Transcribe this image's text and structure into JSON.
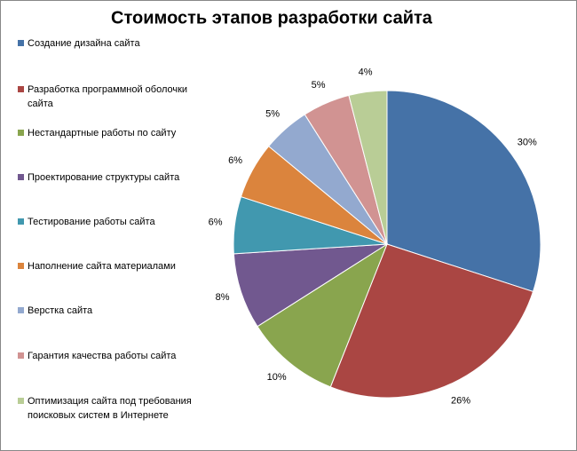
{
  "chart_data": {
    "type": "pie",
    "title": "Стоимость этапов разработки сайта",
    "categories": [
      "Создание дизайна сайта",
      "Разработка программной оболочки сайта",
      "Нестандартные работы по сайту",
      "Проектирование  структуры сайта",
      "Тестирование  работы сайта",
      "Наполнение сайта материалами",
      "Верстка сайта",
      "Гарантия качества работы сайта",
      "Оптимизация сайта под требования поисковых систем в Интернете"
    ],
    "values": [
      30,
      26,
      10,
      8,
      6,
      6,
      5,
      5,
      4
    ],
    "value_labels": [
      "30%",
      "26%",
      "10%",
      "8%",
      "6%",
      "6%",
      "5%",
      "5%",
      "4%"
    ],
    "colors": [
      "#4572a7",
      "#aa4643",
      "#89a54e",
      "#71588f",
      "#4198af",
      "#db843d",
      "#93a9cf",
      "#d19392",
      "#b9cd96"
    ],
    "legend": "left"
  }
}
